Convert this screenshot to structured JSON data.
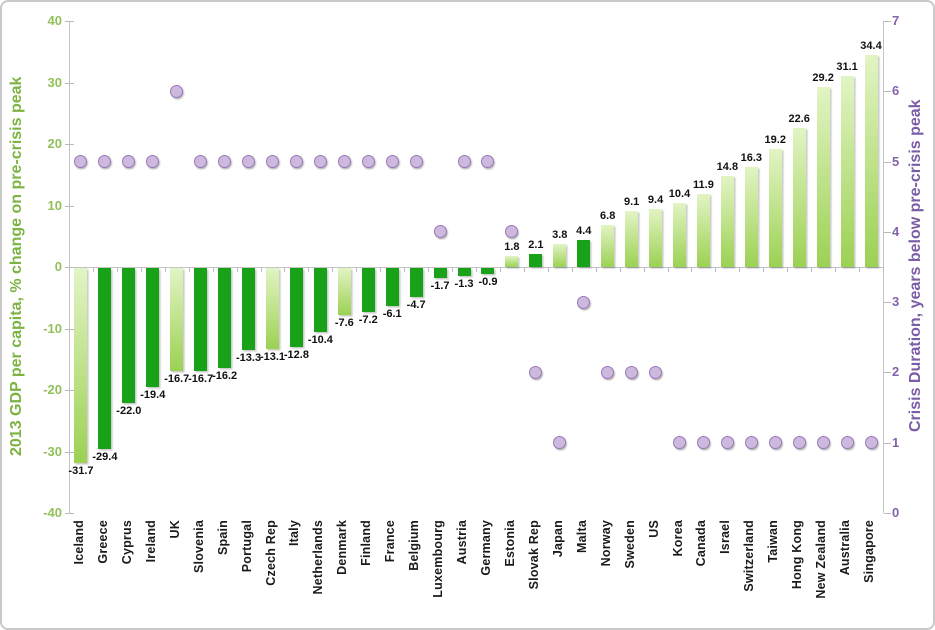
{
  "chart_data": {
    "type": "combo",
    "subtype": "bar + scatter, dual axis",
    "categories": [
      "Iceland",
      "Greece",
      "Cyprus",
      "Ireland",
      "UK",
      "Slovenia",
      "Spain",
      "Portugal",
      "Czech Rep",
      "Italy",
      "Netherlands",
      "Denmark",
      "Finland",
      "France",
      "Belgium",
      "Luxembourg",
      "Austria",
      "Germany",
      "Estonia",
      "Slovak Rep",
      "Japan",
      "Malta",
      "Norway",
      "Sweden",
      "US",
      "Korea",
      "Canada",
      "Israel",
      "Switzerland",
      "Taiwan",
      "Hong Kong",
      "New Zealand",
      "Australia",
      "Singapore"
    ],
    "series": [
      {
        "name": "2013 GDP per capita, % change on pre-crisis peak",
        "type": "bar",
        "axis": "left",
        "values": [
          -31.7,
          -29.4,
          -22.0,
          -19.4,
          -16.7,
          -16.7,
          -16.2,
          -13.3,
          -13.1,
          -12.8,
          -10.4,
          -7.6,
          -7.2,
          -6.1,
          -4.7,
          -1.7,
          -1.3,
          -0.9,
          1.8,
          2.1,
          3.8,
          4.4,
          6.8,
          9.1,
          9.4,
          10.4,
          11.9,
          14.8,
          16.3,
          19.2,
          22.6,
          29.2,
          31.1,
          34.4
        ],
        "data_labels": [
          "-31.7",
          "-29.4",
          "-22.0",
          "-19.4",
          "-16.7",
          "-16.7",
          "-16.2",
          "-13.3",
          "-13.1",
          "-12.8",
          "-10.4",
          "-7.6",
          "-7.2",
          "-6.1",
          "-4.7",
          "-1.7",
          "-1.3",
          "-0.9",
          "1.8",
          "2.1",
          "3.8",
          "4.4",
          "6.8",
          "9.1",
          "9.4",
          "10.4",
          "11.9",
          "14.8",
          "16.3",
          "19.2",
          "22.6",
          "29.2",
          "31.1",
          "34.4"
        ],
        "bar_styles": [
          "light",
          "dark",
          "dark",
          "dark",
          "light",
          "dark",
          "dark",
          "dark",
          "light",
          "dark",
          "dark",
          "light",
          "dark",
          "dark",
          "dark",
          "dark",
          "dark",
          "dark",
          "light",
          "dark",
          "light",
          "dark",
          "light",
          "light",
          "light",
          "light",
          "light",
          "light",
          "light",
          "light",
          "light",
          "light",
          "light",
          "light"
        ]
      },
      {
        "name": "Crisis Duration, years below pre-crisis peak",
        "type": "scatter",
        "axis": "right",
        "values": [
          5,
          5,
          5,
          5,
          6,
          5,
          5,
          5,
          5,
          5,
          5,
          5,
          5,
          5,
          5,
          4,
          5,
          5,
          4,
          2,
          1,
          3,
          2,
          2,
          2,
          1,
          1,
          1,
          1,
          1,
          1,
          1,
          1,
          1
        ]
      }
    ],
    "left_axis": {
      "title": "2013 GDP per capita, % change on pre-crisis peak",
      "min": -40,
      "max": 40,
      "ticks": [
        "40",
        "30",
        "20",
        "10",
        "0",
        "-10",
        "-20",
        "-30",
        "-40"
      ]
    },
    "right_axis": {
      "title": "Crisis Duration, years below pre-crisis peak",
      "min": 0,
      "max": 7,
      "ticks": [
        "7",
        "6",
        "5",
        "4",
        "3",
        "2",
        "1",
        "0"
      ]
    },
    "legend": "none",
    "grid": "zero-line-only",
    "colors": {
      "bar_dark": "#1aa11a",
      "bar_light_top": "#e2f4c4",
      "bar_light_bottom": "#9cd153",
      "dot_fill": "#cdb9de",
      "dot_stroke": "#9a77b9",
      "left_axis_text": "#93c05a",
      "left_axis_title": "#7cb342",
      "right_axis_text": "#8463ab",
      "right_axis_title": "#7b5ca6",
      "axis_line": "#c4c4c4",
      "value_label": "#111111"
    }
  }
}
